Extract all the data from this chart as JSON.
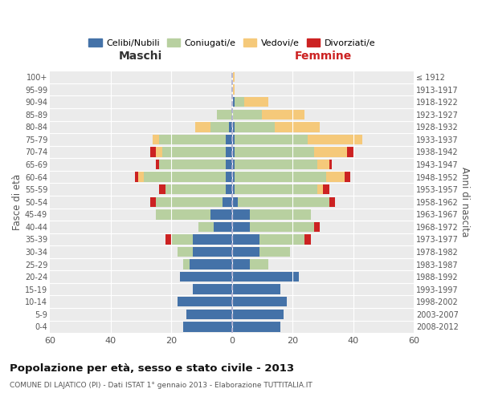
{
  "age_groups": [
    "0-4",
    "5-9",
    "10-14",
    "15-19",
    "20-24",
    "25-29",
    "30-34",
    "35-39",
    "40-44",
    "45-49",
    "50-54",
    "55-59",
    "60-64",
    "65-69",
    "70-74",
    "75-79",
    "80-84",
    "85-89",
    "90-94",
    "95-99",
    "100+"
  ],
  "birth_years": [
    "2008-2012",
    "2003-2007",
    "1998-2002",
    "1993-1997",
    "1988-1992",
    "1983-1987",
    "1978-1982",
    "1973-1977",
    "1968-1972",
    "1963-1967",
    "1958-1962",
    "1953-1957",
    "1948-1952",
    "1943-1947",
    "1938-1942",
    "1933-1937",
    "1928-1932",
    "1923-1927",
    "1918-1922",
    "1913-1917",
    "≤ 1912"
  ],
  "colors": {
    "celibe": "#4472a8",
    "coniugato": "#b8d0a0",
    "vedovo": "#f5c97a",
    "divorziato": "#cc2222"
  },
  "maschi": {
    "celibe": [
      16,
      15,
      18,
      13,
      17,
      14,
      13,
      13,
      6,
      7,
      3,
      2,
      2,
      2,
      2,
      2,
      1,
      0,
      0,
      0,
      0
    ],
    "coniugato": [
      0,
      0,
      0,
      0,
      0,
      2,
      5,
      7,
      5,
      18,
      22,
      20,
      27,
      22,
      21,
      22,
      6,
      5,
      0,
      0,
      0
    ],
    "vedovo": [
      0,
      0,
      0,
      0,
      0,
      0,
      0,
      0,
      0,
      0,
      0,
      0,
      2,
      0,
      2,
      2,
      5,
      0,
      0,
      0,
      0
    ],
    "divorziato": [
      0,
      0,
      0,
      0,
      0,
      0,
      0,
      2,
      0,
      0,
      2,
      2,
      1,
      1,
      2,
      0,
      0,
      0,
      0,
      0,
      0
    ]
  },
  "femmine": {
    "nubile": [
      16,
      17,
      18,
      16,
      22,
      6,
      9,
      9,
      6,
      6,
      2,
      1,
      1,
      1,
      1,
      1,
      1,
      0,
      1,
      0,
      0
    ],
    "coniugata": [
      0,
      0,
      0,
      0,
      0,
      6,
      10,
      15,
      21,
      20,
      30,
      27,
      30,
      27,
      26,
      24,
      13,
      10,
      3,
      0,
      0
    ],
    "vedova": [
      0,
      0,
      0,
      0,
      0,
      0,
      0,
      0,
      0,
      0,
      0,
      2,
      6,
      4,
      11,
      18,
      15,
      14,
      8,
      1,
      1
    ],
    "divorziata": [
      0,
      0,
      0,
      0,
      0,
      0,
      0,
      2,
      2,
      0,
      2,
      2,
      2,
      1,
      2,
      0,
      0,
      0,
      0,
      0,
      0
    ]
  },
  "xlim": 60,
  "title": "Popolazione per età, sesso e stato civile - 2013",
  "subtitle": "COMUNE DI LAJATICO (PI) - Dati ISTAT 1° gennaio 2013 - Elaborazione TUTTITALIA.IT",
  "ylabel_left": "Fasce di età",
  "ylabel_right": "Anni di nascita",
  "xlabel_left": "Maschi",
  "xlabel_right": "Femmine",
  "bg_color": "#ebebeb",
  "legend_labels": [
    "Celibi/Nubili",
    "Coniugati/e",
    "Vedovi/e",
    "Divorziati/e"
  ]
}
